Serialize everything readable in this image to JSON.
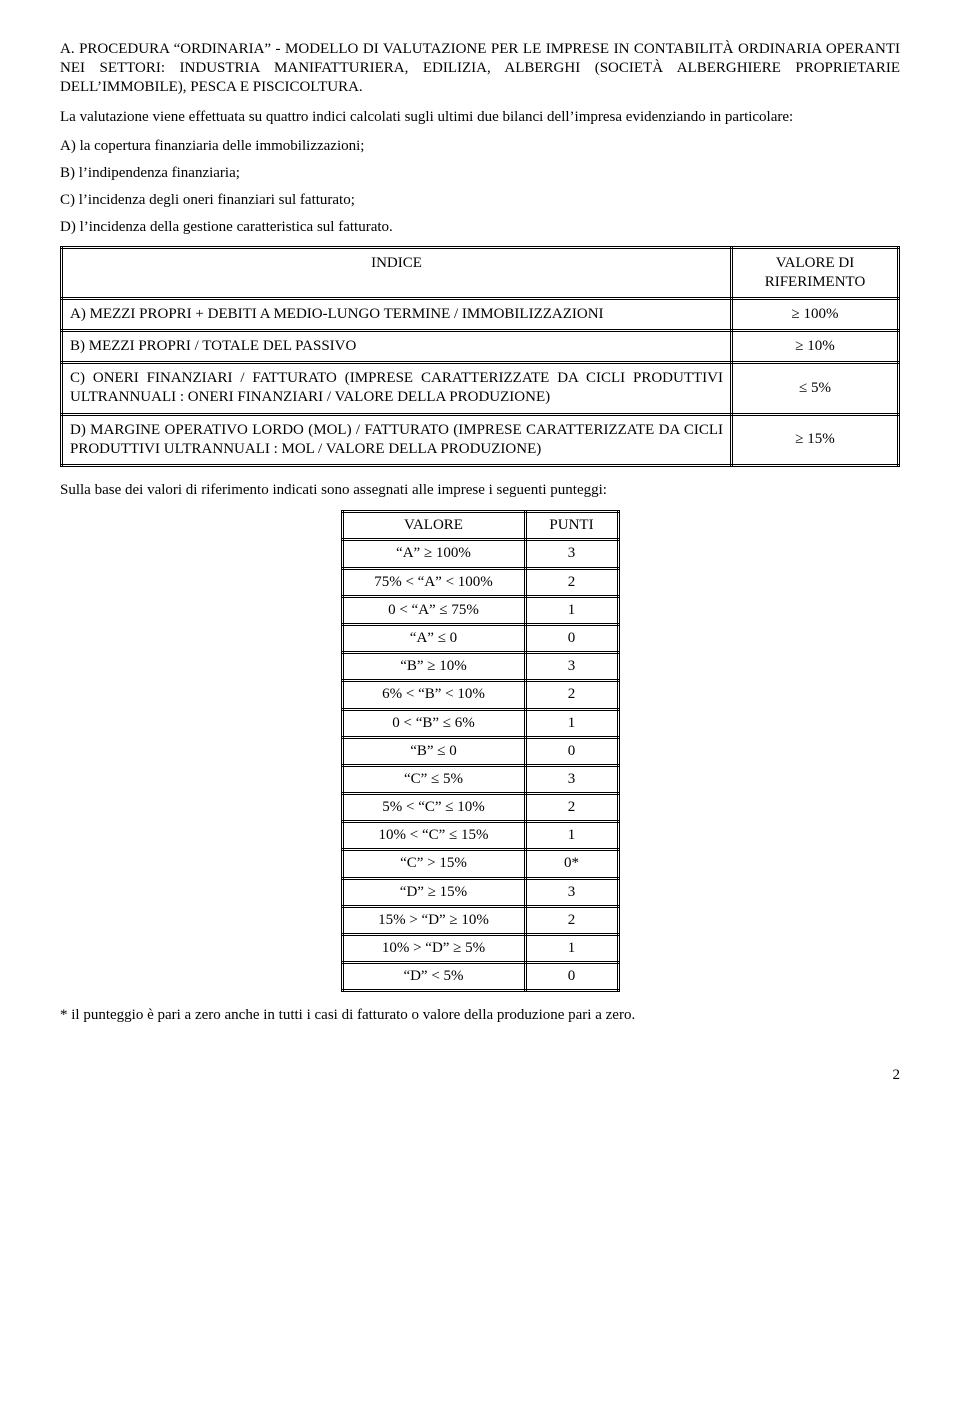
{
  "heading_text": "A. PROCEDURA “ORDINARIA” - MODELLO DI VALUTAZIONE PER LE IMPRESE IN CONTABILITÀ ORDINARIA OPERANTI NEI SETTORI: INDUSTRIA MANIFATTURIERA, EDILIZIA, ALBERGHI (SOCIETÀ ALBERGHIERE PROPRIETARIE DELL’IMMOBILE), PESCA E PISCICOLTURA.",
  "intro_text": "La valutazione viene effettuata su quattro indici calcolati sugli ultimi due bilanci dell’impresa evidenziando in particolare:",
  "list_items": [
    "A) la copertura finanziaria delle immobilizzazioni;",
    "B) l’indipendenza finanziaria;",
    "C) l’incidenza degli oneri finanziari sul fatturato;",
    "D) l’incidenza della gestione caratteristica sul fatturato."
  ],
  "indice_table": {
    "headers": {
      "indice": "INDICE",
      "riferimento": "VALORE DI RIFERIMENTO"
    },
    "rows": [
      {
        "desc": "A) MEZZI PROPRI + DEBITI A MEDIO-LUNGO TERMINE / IMMOBILIZZAZIONI",
        "ref": "≥ 100%"
      },
      {
        "desc": "B) MEZZI PROPRI / TOTALE DEL PASSIVO",
        "ref": "≥ 10%"
      },
      {
        "desc": "C) ONERI FINANZIARI / FATTURATO (IMPRESE CARATTERIZZATE DA CICLI PRODUTTIVI ULTRANNUALI : ONERI FINANZIARI / VALORE DELLA PRODUZIONE)",
        "ref": "≤ 5%"
      },
      {
        "desc": "D) MARGINE OPERATIVO LORDO (MOL) / FATTURATO (IMPRESE CARATTERIZZATE DA CICLI PRODUTTIVI ULTRANNUALI : MOL / VALORE DELLA PRODUZIONE)",
        "ref": "≥ 15%"
      }
    ]
  },
  "after_table_text": "Sulla base dei valori di riferimento indicati sono assegnati alle imprese i seguenti punteggi:",
  "punteggi_table": {
    "headers": {
      "valore": "VALORE",
      "punti": "PUNTI"
    },
    "rows": [
      {
        "valore": "“A” ≥ 100%",
        "punti": "3"
      },
      {
        "valore": "75% < “A” < 100%",
        "punti": "2"
      },
      {
        "valore": "0 < “A” ≤ 75%",
        "punti": "1"
      },
      {
        "valore": "“A” ≤ 0",
        "punti": "0"
      },
      {
        "valore": "“B” ≥ 10%",
        "punti": "3"
      },
      {
        "valore": "6%  < “B” < 10%",
        "punti": "2"
      },
      {
        "valore": "0 < “B” ≤ 6%",
        "punti": "1"
      },
      {
        "valore": "“B” ≤ 0",
        "punti": "0"
      },
      {
        "valore": "“C” ≤ 5%",
        "punti": "3"
      },
      {
        "valore": "5% < “C” ≤ 10%",
        "punti": "2"
      },
      {
        "valore": "10% < “C” ≤ 15%",
        "punti": "1"
      },
      {
        "valore": "“C” > 15%",
        "punti": "0*"
      },
      {
        "valore": "“D” ≥  15%",
        "punti": "3"
      },
      {
        "valore": "15% > “D” ≥  10%",
        "punti": "2"
      },
      {
        "valore": "10% > “D” ≥ 5%",
        "punti": "1"
      },
      {
        "valore": "“D” < 5%",
        "punti": "0"
      }
    ]
  },
  "footnote_text": "* il punteggio è pari a zero anche in tutti i casi di fatturato o valore della produzione pari a zero.",
  "page_number": "2"
}
